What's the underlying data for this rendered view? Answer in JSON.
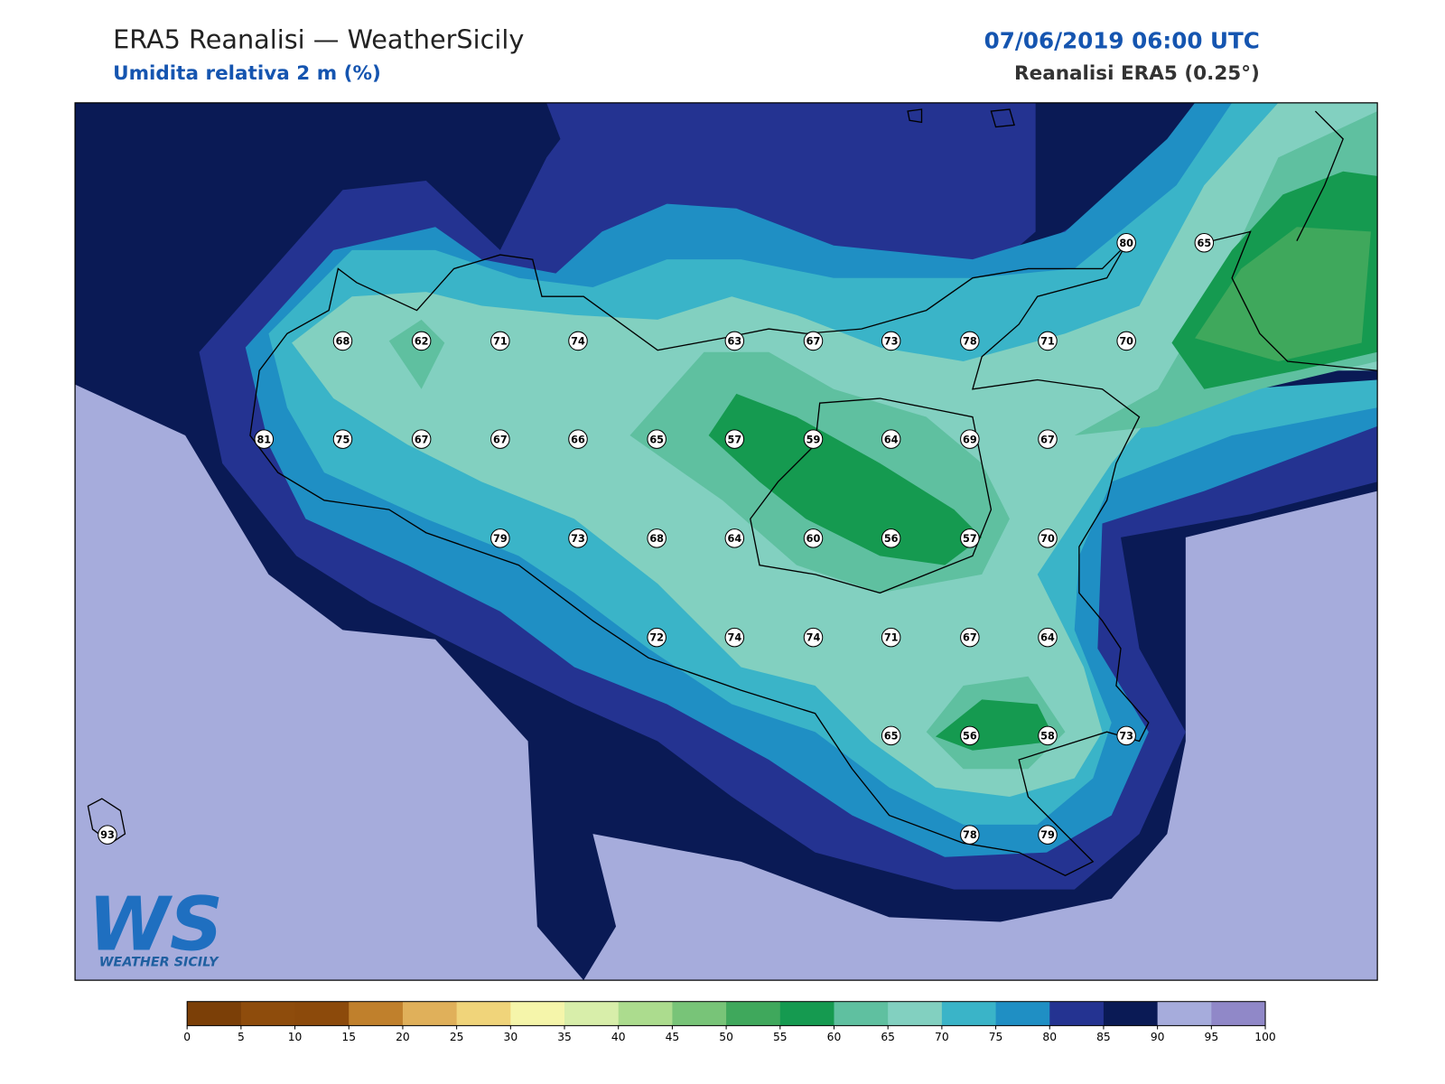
{
  "header": {
    "title": "ERA5 Reanalisi — WeatherSicily",
    "subtitle": "Umidita relativa 2 m (%)",
    "datetime": "07/06/2019 06:00 UTC",
    "source": "Reanalisi ERA5 (0.25°)"
  },
  "points": [
    68,
    62,
    71,
    74,
    63,
    67,
    73,
    78,
    71,
    70,
    80,
    65,
    81,
    75,
    67,
    67,
    66,
    65,
    57,
    59,
    64,
    69,
    67,
    79,
    73,
    68,
    64,
    60,
    56,
    57,
    70,
    72,
    74,
    74,
    71,
    67,
    64,
    65,
    56,
    58,
    73,
    78,
    79,
    93
  ],
  "logo": {
    "mark": "WS",
    "name": "WEATHER SICILY"
  },
  "colorbar": {
    "ticks": [
      0,
      5,
      10,
      15,
      20,
      25,
      30,
      35,
      40,
      45,
      50,
      55,
      60,
      65,
      70,
      75,
      80,
      85,
      90,
      95,
      100
    ],
    "colors": [
      "#7b3f07",
      "#8e4c0c",
      "#8c4a0b",
      "#c0802c",
      "#e0b05a",
      "#f0d47a",
      "#f5f5aa",
      "#d8eeaa",
      "#acdc8e",
      "#78c478",
      "#3fa85c",
      "#159a50",
      "#5fc0a0",
      "#82d0c0",
      "#3ab4c8",
      "#1f8fc4",
      "#243391",
      "#0a1a55",
      "#a6acdc",
      "#9088c8"
    ]
  }
}
